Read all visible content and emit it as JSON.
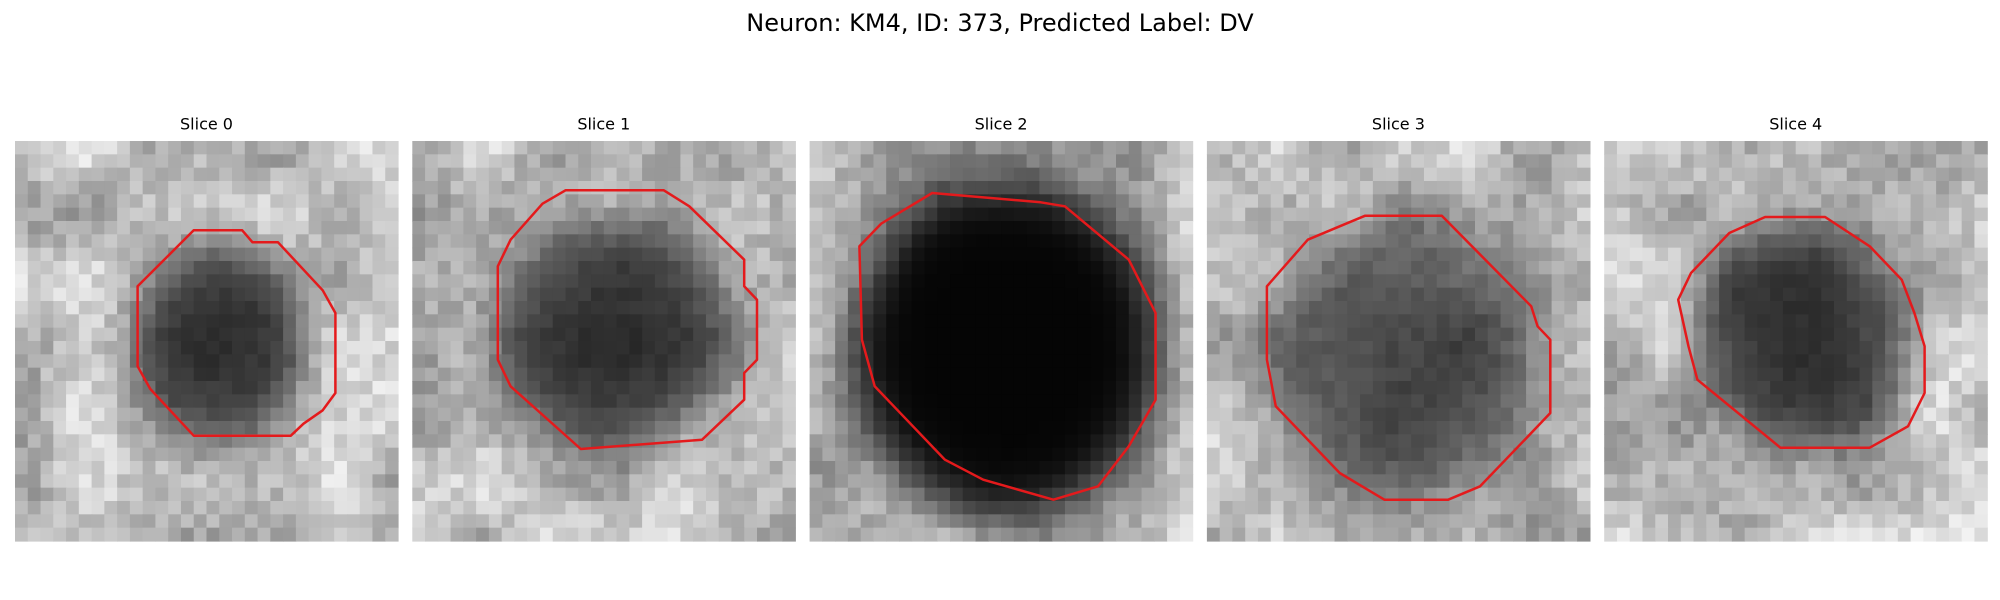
{
  "title": "Neuron: KM4, ID: 373, Predicted Label: DV",
  "panels": [
    {
      "title": "Slice 0"
    },
    {
      "title": "Slice 1"
    },
    {
      "title": "Slice 2"
    },
    {
      "title": "Slice 3"
    },
    {
      "title": "Slice 4"
    }
  ]
}
